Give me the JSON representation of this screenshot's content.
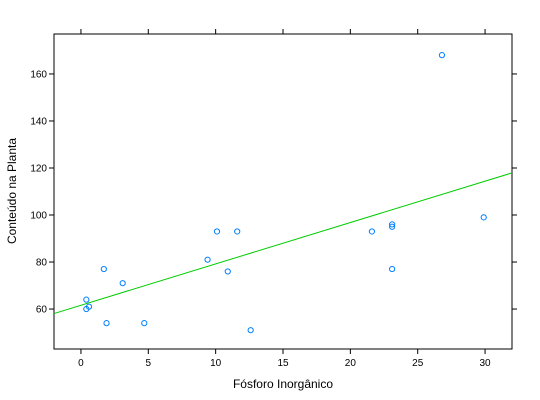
{
  "chart_data": {
    "type": "scatter",
    "xlabel": "Fósforo Inorgânico",
    "ylabel": "Conteúdo na Planta",
    "xlim": [
      -2,
      32
    ],
    "ylim": [
      43,
      177
    ],
    "xticks": [
      0,
      5,
      10,
      15,
      20,
      25,
      30
    ],
    "yticks": [
      60,
      80,
      100,
      120,
      140,
      160
    ],
    "grid": false,
    "series": [
      {
        "x": [
          0.4,
          0.4,
          0.6,
          1.7,
          1.9,
          3.1,
          4.7,
          9.4,
          10.1,
          10.9,
          11.6,
          12.6,
          21.6,
          23.1,
          23.1,
          23.1,
          26.8,
          29.9
        ],
        "y": [
          64,
          60,
          61,
          77,
          54,
          71,
          54,
          81,
          93,
          76,
          93,
          51,
          93,
          95,
          96,
          77,
          168,
          99
        ]
      }
    ],
    "regression_line": {
      "intercept": 61.6,
      "slope": 1.76
    },
    "colors": {
      "points": "#0080ff",
      "line": "#00cc00",
      "frame": "#000000"
    }
  }
}
